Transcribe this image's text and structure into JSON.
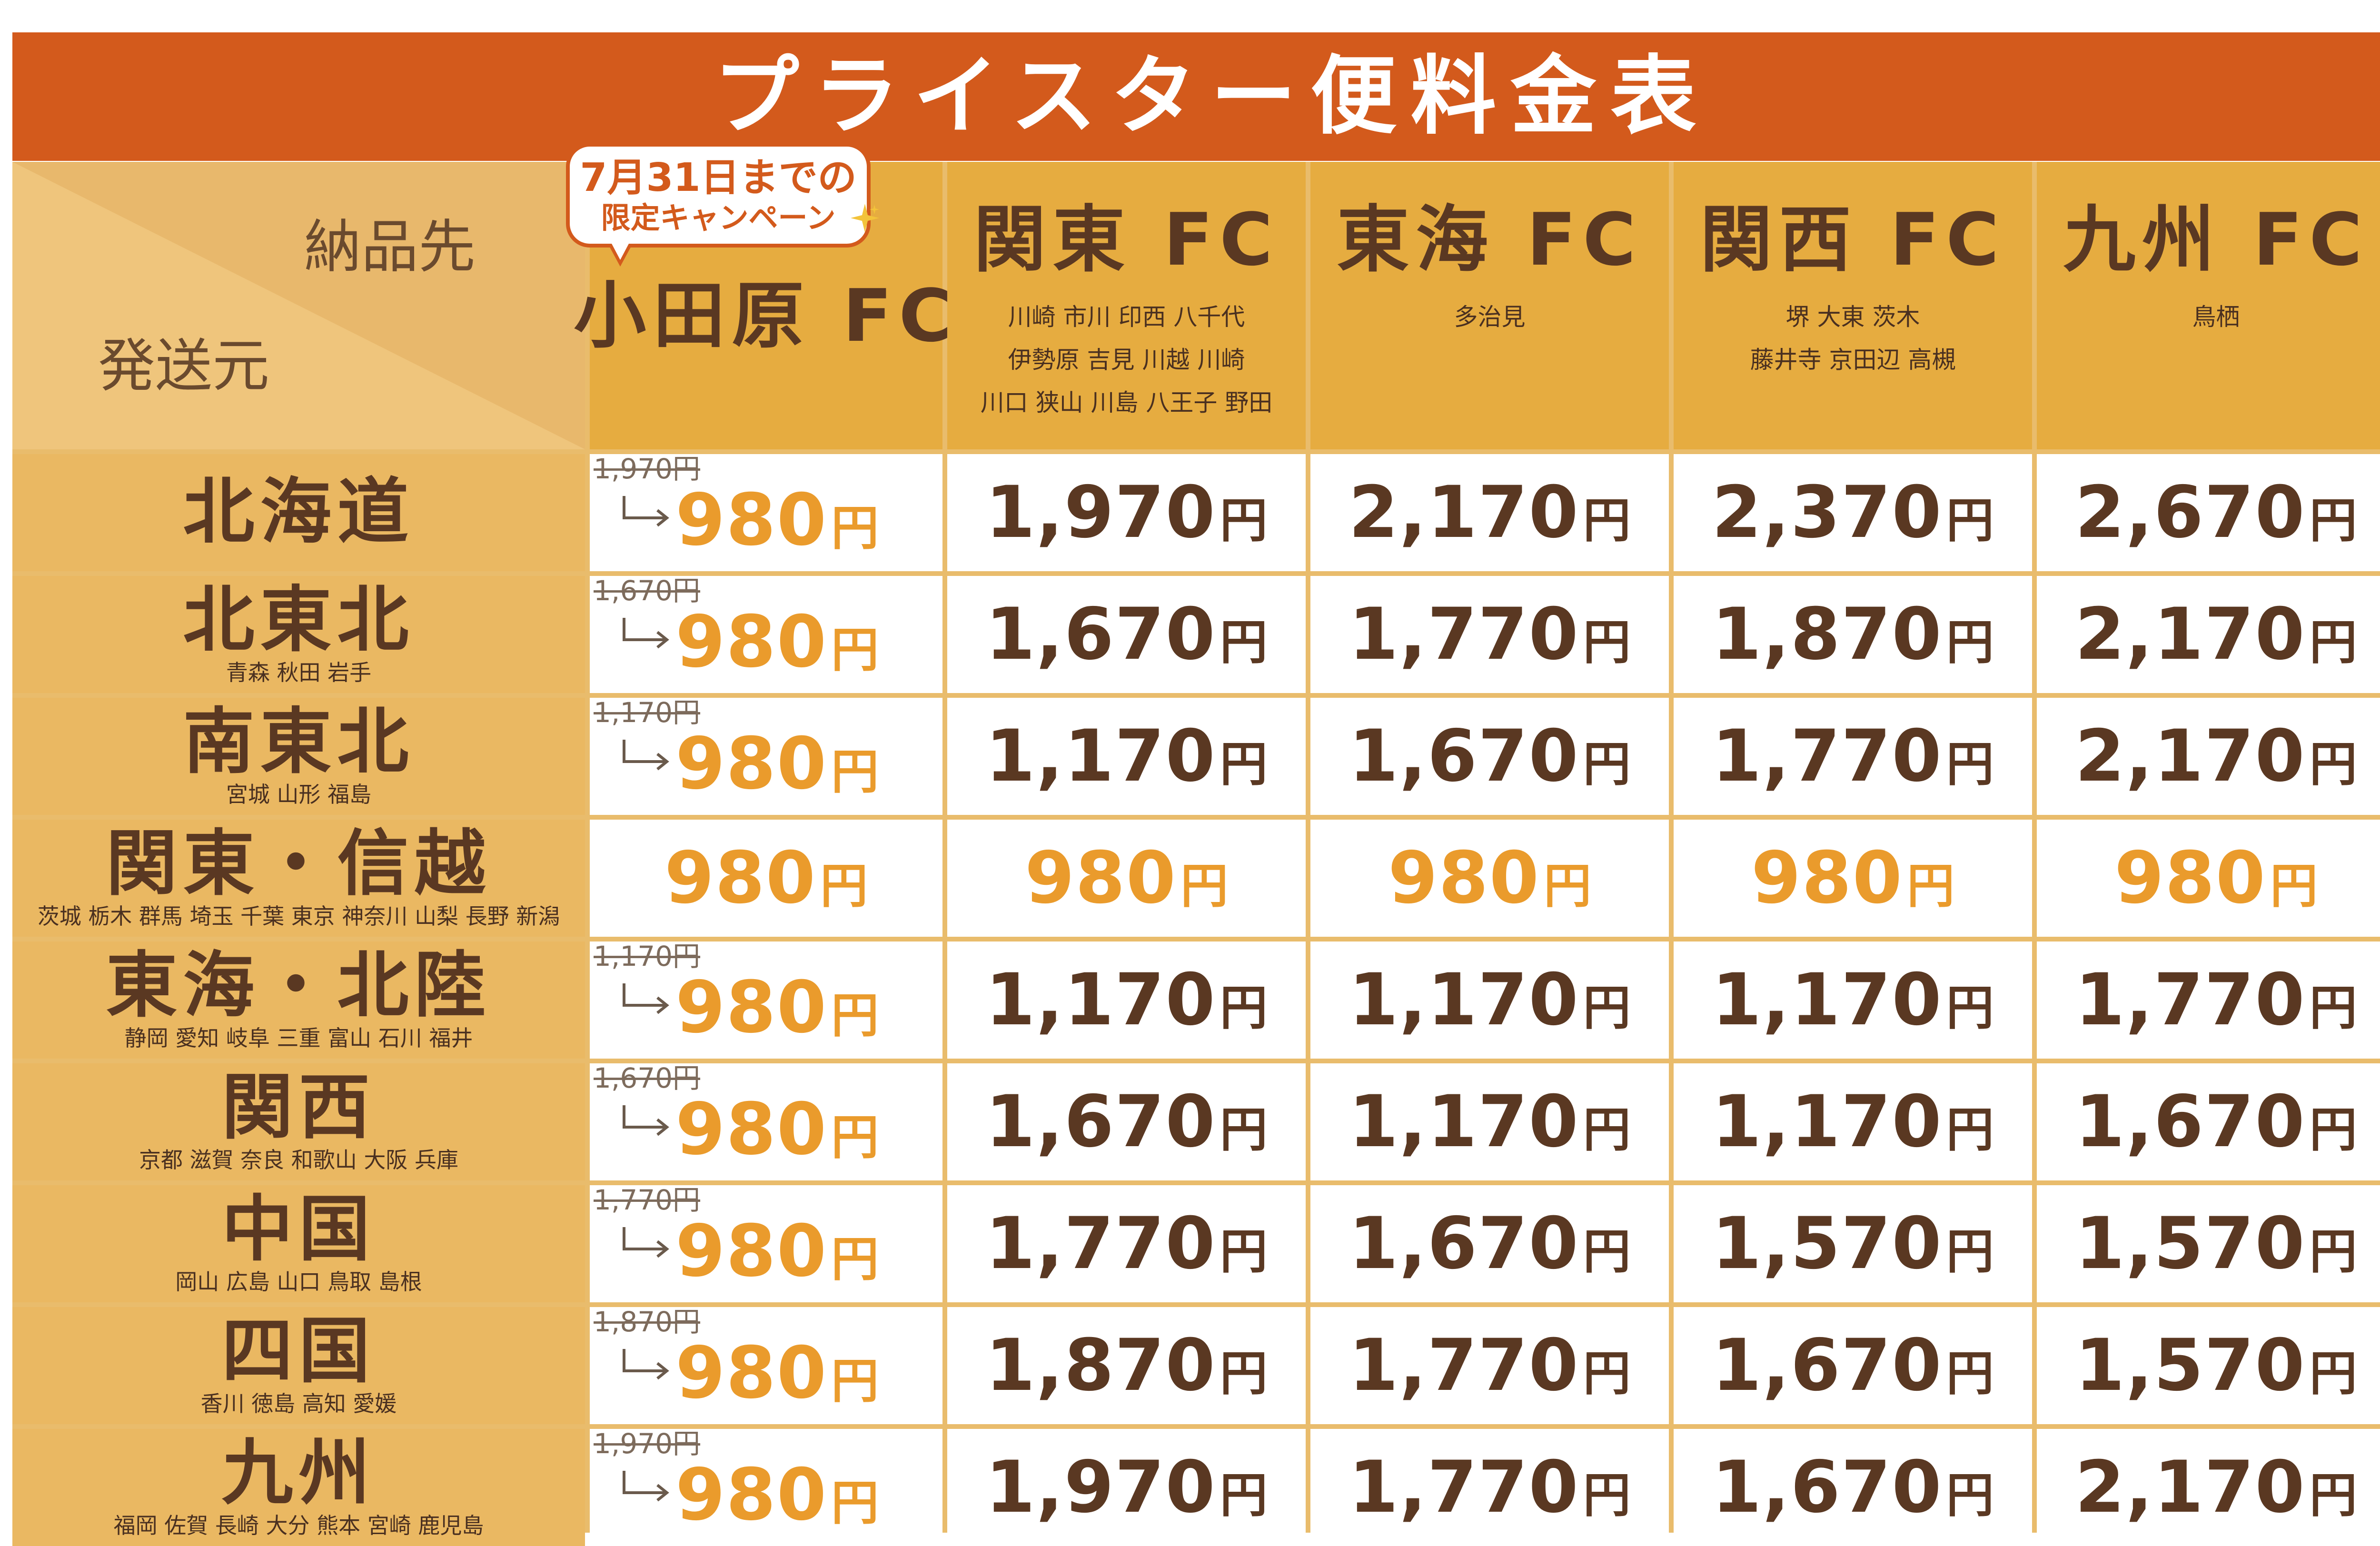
{
  "title": "プライスター便料金表",
  "corner": {
    "destination_label": "納品先",
    "origin_label": "発送元"
  },
  "campaign": {
    "line1": "7月31日までの",
    "line2": "限定キャンペーン",
    "sparkle_icon": "sparkle-icon"
  },
  "colors": {
    "title_bg": "#d35a1c",
    "header_bg": "#e6ac40",
    "row_label_bg": "#eab862",
    "text_brown": "#5a3822",
    "price_orange": "#ea9b2c",
    "grid_line": "#e9bc6c"
  },
  "columns": [
    {
      "name": "小田原 FC",
      "cities": []
    },
    {
      "name": "関東 FC",
      "cities": [
        "川崎 市川 印西 八千代",
        "伊勢原 吉見 川越 川崎",
        "川口 狭山 川島 八王子 野田"
      ]
    },
    {
      "name": "東海 FC",
      "cities": [
        "多治見"
      ]
    },
    {
      "name": "関西 FC",
      "cities": [
        "堺 大東 茨木",
        "藤井寺 京田辺 高槻"
      ]
    },
    {
      "name": "九州 FC",
      "cities": [
        "鳥栖"
      ]
    }
  ],
  "yen": "円",
  "rows": [
    {
      "name": "北海道",
      "prefectures": "",
      "odawara": {
        "old": "1,970円",
        "price": "980"
      },
      "prices": [
        "1,970",
        "2,170",
        "2,370",
        "2,670"
      ]
    },
    {
      "name": "北東北",
      "prefectures": "青森 秋田 岩手",
      "odawara": {
        "old": "1,670円",
        "price": "980"
      },
      "prices": [
        "1,670",
        "1,770",
        "1,870",
        "2,170"
      ]
    },
    {
      "name": "南東北",
      "prefectures": "宮城 山形 福島",
      "odawara": {
        "old": "1,170円",
        "price": "980"
      },
      "prices": [
        "1,170",
        "1,670",
        "1,770",
        "2,170"
      ]
    },
    {
      "name": "関東・信越",
      "prefectures": "茨城 栃木 群馬 埼玉 千葉 東京 神奈川 山梨 長野 新潟",
      "odawara": {
        "old": "",
        "price": "980"
      },
      "prices": [
        "980",
        "980",
        "980",
        "980"
      ]
    },
    {
      "name": "東海・北陸",
      "prefectures": "静岡 愛知 岐阜 三重 富山 石川 福井",
      "odawara": {
        "old": "1,170円",
        "price": "980"
      },
      "prices": [
        "1,170",
        "1,170",
        "1,170",
        "1,770"
      ]
    },
    {
      "name": "関西",
      "prefectures": "京都 滋賀 奈良 和歌山 大阪 兵庫",
      "odawara": {
        "old": "1,670円",
        "price": "980"
      },
      "prices": [
        "1,670",
        "1,170",
        "1,170",
        "1,670"
      ]
    },
    {
      "name": "中国",
      "prefectures": "岡山 広島 山口 鳥取 島根",
      "odawara": {
        "old": "1,770円",
        "price": "980"
      },
      "prices": [
        "1,770",
        "1,670",
        "1,570",
        "1,570"
      ]
    },
    {
      "name": "四国",
      "prefectures": "香川 徳島 高知 愛媛",
      "odawara": {
        "old": "1,870円",
        "price": "980"
      },
      "prices": [
        "1,870",
        "1,770",
        "1,670",
        "1,570"
      ]
    },
    {
      "name": "九州",
      "prefectures": "福岡 佐賀 長崎 大分 熊本 宮崎 鹿児島",
      "odawara": {
        "old": "1,970円",
        "price": "980"
      },
      "prices": [
        "1,970",
        "1,770",
        "1,670",
        "2,170"
      ]
    }
  ]
}
